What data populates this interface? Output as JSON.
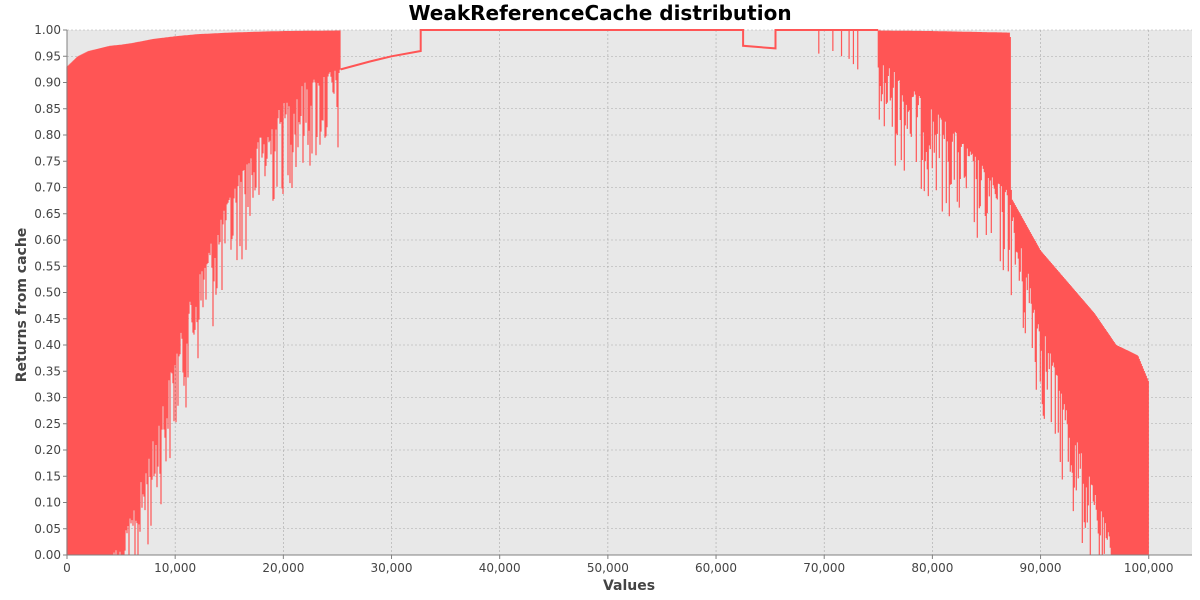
{
  "chart_data": {
    "type": "line",
    "title": "WeakReferenceCache distribution",
    "xlabel": "Values",
    "ylabel": "Returns from cache",
    "xlim": [
      0,
      104000
    ],
    "ylim": [
      0,
      1.0
    ],
    "x_ticks": [
      0,
      10000,
      20000,
      30000,
      40000,
      50000,
      60000,
      70000,
      80000,
      90000,
      100000
    ],
    "x_tick_labels": [
      "0",
      "10,000",
      "20,000",
      "30,000",
      "40,000",
      "50,000",
      "60,000",
      "70,000",
      "80,000",
      "90,000",
      "100,000"
    ],
    "y_ticks": [
      0,
      0.05,
      0.1,
      0.15,
      0.2,
      0.25,
      0.3,
      0.35,
      0.4,
      0.45,
      0.5,
      0.55,
      0.6,
      0.65,
      0.7,
      0.75,
      0.8,
      0.85,
      0.9,
      0.95,
      1.0
    ],
    "y_tick_labels": [
      "0.00",
      "0.05",
      "0.10",
      "0.15",
      "0.20",
      "0.25",
      "0.30",
      "0.35",
      "0.40",
      "0.45",
      "0.50",
      "0.55",
      "0.60",
      "0.65",
      "0.70",
      "0.75",
      "0.80",
      "0.85",
      "0.90",
      "0.95",
      "1.00"
    ],
    "grid": true,
    "series_color": "#ff5555",
    "plot_background": "#e8e8e8",
    "grid_color": "#a8a8a8",
    "series": [
      {
        "upper_envelope": {
          "x": [
            0,
            1000,
            2000,
            3000,
            4000,
            5000,
            6000,
            8000,
            10000,
            12000,
            15000,
            18000,
            20000,
            25000,
            25300
          ],
          "y": [
            0.93,
            0.95,
            0.96,
            0.965,
            0.97,
            0.972,
            0.975,
            0.983,
            0.988,
            0.992,
            0.995,
            0.997,
            0.998,
            0.999,
            0.999
          ]
        },
        "lower_envelope": {
          "x": [
            0,
            2000,
            4000,
            5000,
            6000,
            7000,
            8000,
            9000,
            10000,
            11000,
            12000,
            13000,
            14000,
            15000,
            16000,
            17000,
            18000,
            19000,
            20000,
            21000,
            22000,
            23000,
            24000,
            25300
          ],
          "y": [
            0.0,
            0.0,
            0.0,
            0.02,
            0.08,
            0.15,
            0.22,
            0.3,
            0.38,
            0.46,
            0.52,
            0.58,
            0.63,
            0.68,
            0.73,
            0.77,
            0.8,
            0.83,
            0.86,
            0.88,
            0.9,
            0.91,
            0.92,
            0.925
          ]
        },
        "line": {
          "x": [
            25300,
            28000,
            30000,
            32700,
            32700,
            62500,
            62500,
            65500,
            65500,
            75000
          ],
          "y": [
            0.925,
            0.94,
            0.95,
            0.96,
            1.0,
            1.0,
            0.97,
            0.965,
            1.0,
            1.0
          ]
        },
        "spikes": [
          {
            "x": 69500,
            "y": 0.955
          },
          {
            "x": 70800,
            "y": 0.96
          },
          {
            "x": 71600,
            "y": 0.95
          },
          {
            "x": 72300,
            "y": 0.945
          },
          {
            "x": 72700,
            "y": 0.935
          },
          {
            "x": 73100,
            "y": 0.925
          }
        ],
        "upper_envelope_2": {
          "x": [
            75000,
            80000,
            87200,
            87300,
            90000,
            95000,
            97000,
            99000,
            100000
          ],
          "y": [
            0.999,
            0.998,
            0.995,
            0.68,
            0.58,
            0.46,
            0.4,
            0.38,
            0.33
          ]
        },
        "lower_envelope_2": {
          "x": [
            75000,
            76000,
            77000,
            78000,
            79000,
            80000,
            81000,
            82000,
            83000,
            84000,
            85000,
            86000,
            87200,
            87300,
            88000,
            89000,
            90000,
            91000,
            92000,
            93000,
            94000,
            95000,
            96000,
            97000,
            98000,
            99000,
            100000
          ],
          "y": [
            0.94,
            0.93,
            0.91,
            0.89,
            0.87,
            0.85,
            0.83,
            0.81,
            0.78,
            0.76,
            0.73,
            0.71,
            0.69,
            0.66,
            0.6,
            0.53,
            0.45,
            0.38,
            0.31,
            0.24,
            0.18,
            0.12,
            0.06,
            0.0,
            0.0,
            0.0,
            0.0
          ]
        }
      }
    ]
  }
}
